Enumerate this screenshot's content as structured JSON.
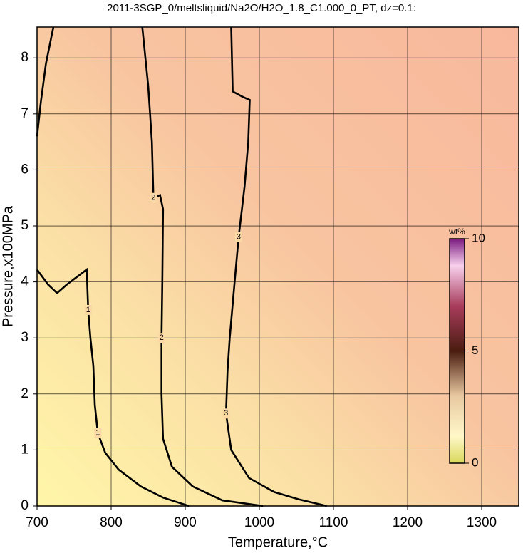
{
  "chart_data": {
    "type": "contour",
    "title": "2011-3SGP_0/meltsliquid/Na2O/H2O_1.8_C1.000_0_PT, dz=0.1:",
    "x_label": "Temperature,°C",
    "y_label": "Pressure,x100MPa",
    "xlim": [
      700,
      1350
    ],
    "ylim": [
      0,
      8.55
    ],
    "xticks": [
      700,
      800,
      900,
      1000,
      1100,
      1200,
      1300
    ],
    "yticks": [
      0,
      1,
      2,
      3,
      4,
      5,
      6,
      7,
      8
    ],
    "grid": true,
    "colorbar": {
      "label": "wt%",
      "lim": [
        0,
        10
      ],
      "ticks": [
        0,
        5,
        10
      ]
    },
    "contours": [
      {
        "level": 1,
        "x": [
          700,
          715,
          727,
          740,
          760,
          767,
          769,
          772,
          776,
          778,
          782,
          792,
          810,
          840,
          870,
          905
        ],
        "y": [
          4.22,
          3.95,
          3.8,
          3.95,
          4.15,
          4.22,
          3.5,
          3.0,
          2.5,
          1.8,
          1.3,
          0.95,
          0.65,
          0.35,
          0.15,
          0
        ]
      },
      {
        "level": 2,
        "x": [
          700,
          705,
          712,
          722,
          null,
          842,
          850,
          855,
          857,
          866,
          870,
          869,
          868,
          868,
          870,
          882,
          910,
          950,
          1005
        ],
        "y": [
          6.6,
          7.2,
          7.9,
          8.55,
          null,
          8.55,
          7.5,
          6.5,
          5.5,
          5.55,
          5.3,
          4.0,
          3.0,
          2.0,
          1.2,
          0.7,
          0.35,
          0.1,
          0
        ]
      },
      {
        "level": 3,
        "x": [
          962,
          964,
          978,
          987,
          985,
          980,
          972,
          966,
          960,
          957,
          955,
          962,
          986,
          1020,
          1053,
          1091
        ],
        "y": [
          8.55,
          7.4,
          7.3,
          7.25,
          6.5,
          5.7,
          4.8,
          3.9,
          3.0,
          2.4,
          1.65,
          1.0,
          0.5,
          0.25,
          0.12,
          0
        ]
      }
    ]
  }
}
